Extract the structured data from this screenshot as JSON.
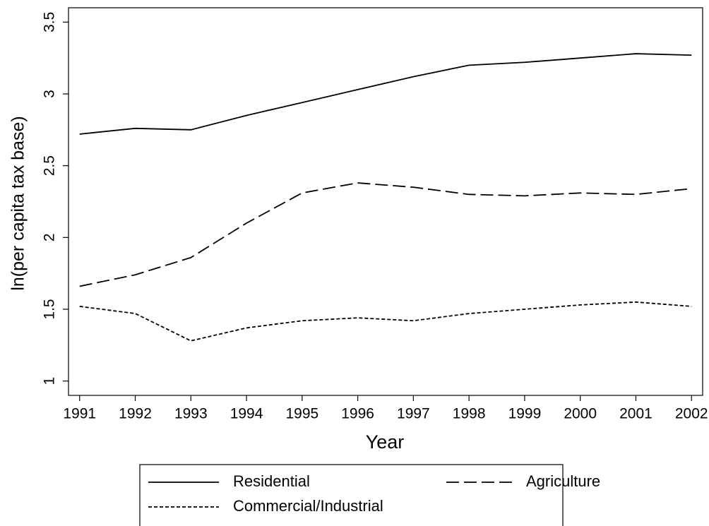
{
  "chart_data": {
    "type": "line",
    "x_label": "Year",
    "y_label": "ln(per capita tax base)",
    "x": [
      1991,
      1992,
      1993,
      1994,
      1995,
      1996,
      1997,
      1998,
      1999,
      2000,
      2001,
      2002
    ],
    "series": [
      {
        "name": "Residential",
        "color": "#000000",
        "dash": "solid",
        "values": [
          2.72,
          2.76,
          2.75,
          2.85,
          2.94,
          3.03,
          3.12,
          3.2,
          3.22,
          3.25,
          3.28,
          3.27
        ]
      },
      {
        "name": "Agriculture",
        "color": "#000000",
        "dash": "dashed",
        "values": [
          1.66,
          1.74,
          1.86,
          2.1,
          2.31,
          2.38,
          2.35,
          2.3,
          2.29,
          2.31,
          2.3,
          2.34
        ]
      },
      {
        "name": "Commercial/Industrial",
        "color": "#000000",
        "dash": "dotted",
        "values": [
          1.52,
          1.47,
          1.28,
          1.37,
          1.42,
          1.44,
          1.42,
          1.47,
          1.5,
          1.53,
          1.55,
          1.52
        ]
      }
    ],
    "xlim": [
      1990.8,
      2002.2
    ],
    "xticks": [
      1991,
      1992,
      1993,
      1994,
      1995,
      1996,
      1997,
      1998,
      1999,
      2000,
      2001,
      2002
    ],
    "ylim": [
      0.9,
      3.6
    ],
    "yticks": [
      1,
      1.5,
      2,
      2.5,
      3,
      3.5
    ],
    "grid": false,
    "legend": "bottom"
  }
}
